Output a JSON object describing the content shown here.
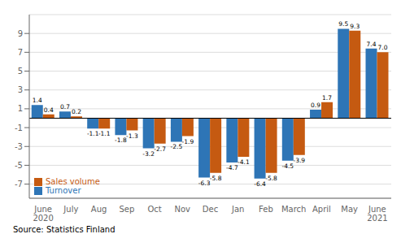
{
  "chart_data": {
    "type": "bar",
    "categories": [
      "June\n2020",
      "July",
      "Aug",
      "Sep",
      "Oct",
      "Nov",
      "Dec",
      "Jan",
      "Feb",
      "March",
      "April",
      "May",
      "June\n2021"
    ],
    "series": [
      {
        "name": "Turnover",
        "color": "#2E75B6",
        "values": [
          1.4,
          0.7,
          -1.1,
          -1.8,
          -3.2,
          -2.5,
          -6.3,
          -4.7,
          -6.4,
          -4.5,
          0.9,
          9.5,
          7.4
        ],
        "value_labels": [
          "1.4",
          "0.7",
          "-1.1",
          "-1.8",
          "-3.2",
          "-2.5",
          "-6.3",
          "-4.7",
          "-6.4",
          "-4.5",
          "0.9",
          "9.5",
          "7.4"
        ]
      },
      {
        "name": "Sales volume",
        "color": "#C55A11",
        "values": [
          0.4,
          0.2,
          -1.1,
          -1.3,
          -2.7,
          -1.9,
          -5.8,
          -4.1,
          -5.8,
          -3.9,
          1.7,
          9.3,
          7.0
        ],
        "value_labels": [
          "0.4",
          "0.2",
          "-1.1",
          "-1.3",
          "-2.7",
          "-1.9",
          "-5.8",
          "-4.1",
          "-5.8",
          "-3.9",
          "1.7",
          "9.3",
          "7.0"
        ]
      }
    ],
    "ylim": [
      -8.5,
      11
    ],
    "yticks": [
      -7,
      -5,
      -3,
      -1,
      1,
      3,
      5,
      7,
      9
    ],
    "grid": true,
    "legend": "lower left",
    "data_labels": true,
    "source": "Source: Statistics Finland"
  }
}
